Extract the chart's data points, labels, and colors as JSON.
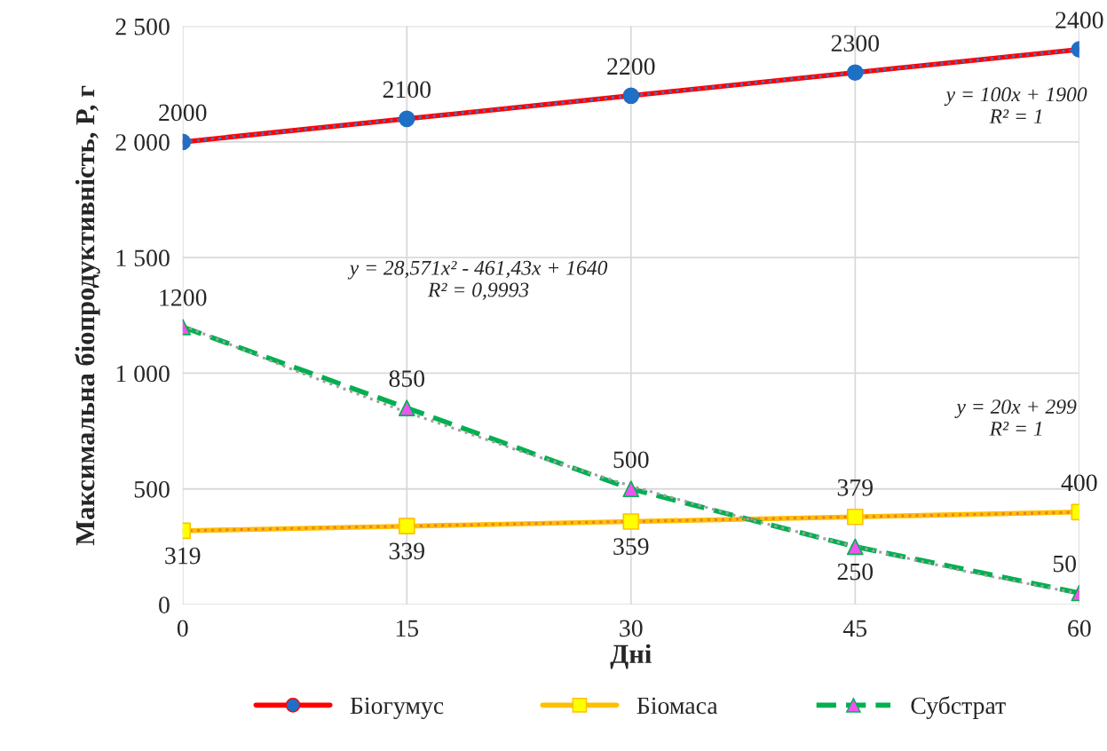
{
  "chart_data": {
    "type": "line",
    "xlabel": "Дні",
    "ylabel": "Максимальна біопродуктивність, P, г",
    "x": [
      0,
      15,
      30,
      45,
      60
    ],
    "xlim": [
      0,
      60
    ],
    "xticks": [
      0,
      15,
      30,
      45,
      60
    ],
    "ylim": [
      0,
      2500
    ],
    "yticks": [
      0,
      500,
      {
        "value": 1000,
        "label": "1 000"
      },
      {
        "value": 1500,
        "label": "1 500"
      },
      {
        "value": 2000,
        "label": "2 000"
      },
      {
        "value": 2500,
        "label": "2 500"
      }
    ],
    "grid": true,
    "legend": "bottom",
    "series": [
      {
        "name": "Біогумус",
        "color": "#ff0000",
        "colors": [
          "#1f6fc5",
          "#1f6fc5",
          "#1f6fc5",
          "#1f6fc5",
          "#1f6fc5"
        ],
        "marker": "circle",
        "line_style": "solid",
        "values": [
          2000,
          2100,
          2200,
          2300,
          2400
        ],
        "value_labels": [
          "2000",
          "2100",
          "2200",
          "2300",
          "2400"
        ]
      },
      {
        "name": "Біомаса",
        "color": "#ffc000",
        "colors": [
          "#ffff00",
          "#ffff00",
          "#ffff00",
          "#ffff00",
          "#ffff00"
        ],
        "marker": "square",
        "line_style": "solid",
        "values": [
          319,
          339,
          359,
          379,
          400
        ],
        "value_labels": [
          "319",
          "339",
          "359",
          "379",
          "400"
        ]
      },
      {
        "name": "Субстрат",
        "color": "#00b050",
        "colors": [
          "#ee55ee",
          "#ee55ee",
          "#ee55ee",
          "#ee55ee",
          "#ee55ee"
        ],
        "marker": "triangle",
        "line_style": "dashed",
        "values": [
          1200,
          850,
          500,
          250,
          50
        ],
        "value_labels": [
          "1200",
          "850",
          "500",
          "250",
          "50"
        ]
      },
      {
        "type": "line",
        "color": "#4472c4",
        "marker": "none",
        "line_style": "dotted",
        "x": [
          0,
          60
        ],
        "values": [
          2000,
          2400
        ]
      },
      {
        "type": "line",
        "color": "#ed7d31",
        "marker": "none",
        "line_style": "dotted",
        "x": [
          0,
          60
        ],
        "values": [
          319,
          399
        ]
      },
      {
        "type": "line",
        "color": "#a0a0a0",
        "marker": "none",
        "line_style": "dotted",
        "x": [
          0,
          7.5,
          15,
          22.5,
          30,
          37.5,
          45,
          52.5,
          60
        ],
        "values": [
          1207,
          1012,
          831,
          665,
          513,
          375,
          251,
          142,
          47
        ]
      }
    ],
    "annotations": [
      "y = 100x + 1900\nR² = 1",
      "y = 28,571x² - 461,43x + 1640\nR² = 0,9993",
      "y = 20x + 299\nR² = 1"
    ]
  }
}
